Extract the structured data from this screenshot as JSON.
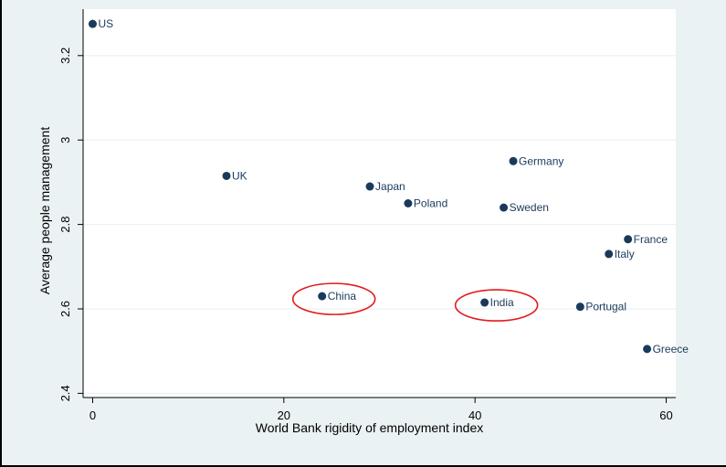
{
  "chart_data": {
    "type": "scatter",
    "xlabel": "World Bank rigidity of employment index",
    "ylabel": "Average people management",
    "xlim": [
      -1,
      61
    ],
    "ylim": [
      2.39,
      3.31
    ],
    "x_ticks": [
      0,
      20,
      40,
      60
    ],
    "y_ticks": [
      2.4,
      2.6,
      2.8,
      3.0,
      3.2
    ],
    "x_tick_labels": [
      "0",
      "20",
      "40",
      "60"
    ],
    "y_tick_labels": [
      "2.4",
      "2.6",
      "2.8",
      "3",
      "3.2"
    ],
    "grid": "horizontal",
    "marker_color": "#1a3a5c",
    "highlight_color": "#e31a1c",
    "plot_background": "#ffffff",
    "outer_background": "#eaf2f3",
    "points": [
      {
        "label": "US",
        "x": 0,
        "y": 3.275
      },
      {
        "label": "UK",
        "x": 14,
        "y": 2.915
      },
      {
        "label": "Japan",
        "x": 29,
        "y": 2.89
      },
      {
        "label": "Poland",
        "x": 33,
        "y": 2.85
      },
      {
        "label": "Germany",
        "x": 44,
        "y": 2.95
      },
      {
        "label": "Sweden",
        "x": 43,
        "y": 2.84
      },
      {
        "label": "France",
        "x": 56,
        "y": 2.765
      },
      {
        "label": "Italy",
        "x": 54,
        "y": 2.73
      },
      {
        "label": "China",
        "x": 24,
        "y": 2.63
      },
      {
        "label": "India",
        "x": 41,
        "y": 2.615
      },
      {
        "label": "Portugal",
        "x": 51,
        "y": 2.605
      },
      {
        "label": "Greece",
        "x": 58,
        "y": 2.505
      }
    ],
    "highlighted": [
      "China",
      "India"
    ]
  }
}
